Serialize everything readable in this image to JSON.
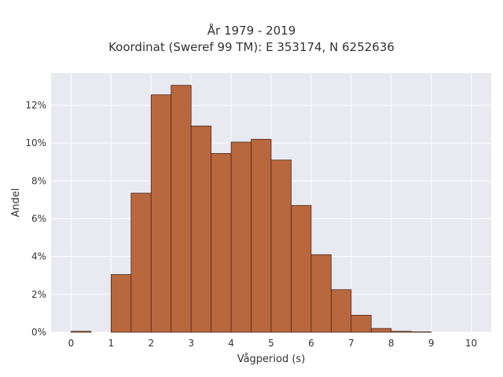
{
  "chart_data": {
    "type": "bar",
    "title": "År 1979 - 2019",
    "subtitle": "Koordinat (Sweref 99 TM): E 353174, N 6252636",
    "xlabel": "Vågperiod (s)",
    "ylabel": "Andel",
    "bin_width": 0.5,
    "bin_starts": [
      0,
      0.5,
      1,
      1.5,
      2,
      2.5,
      3,
      3.5,
      4,
      4.5,
      5,
      5.5,
      6,
      6.5,
      7,
      7.5,
      8,
      8.5,
      9,
      9.5
    ],
    "values": [
      0.05,
      0,
      3.05,
      7.35,
      12.55,
      13.05,
      10.9,
      9.45,
      10.05,
      10.2,
      9.1,
      6.7,
      4.1,
      2.25,
      0.9,
      0.2,
      0.05,
      0.02,
      0,
      0
    ],
    "x_ticks": [
      "0",
      "1",
      "2",
      "3",
      "4",
      "5",
      "6",
      "7",
      "8",
      "9",
      "10"
    ],
    "y_ticks": [
      "0%",
      "2%",
      "4%",
      "6%",
      "8%",
      "10%",
      "12%"
    ],
    "xlim": [
      -0.5,
      10.5
    ],
    "ylim": [
      0,
      13.7
    ],
    "grid": true,
    "colors": {
      "bar_fill": "#b8673f",
      "bar_stroke": "#4a2a1a",
      "plot_background": "#e9e9f1",
      "grid": "#ffffff"
    }
  }
}
